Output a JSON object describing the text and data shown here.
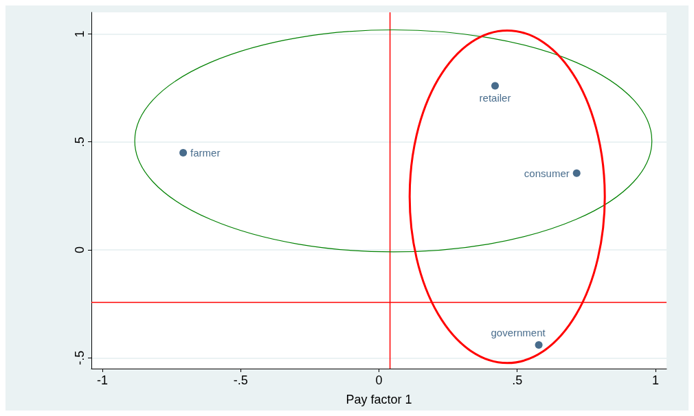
{
  "chart_data": {
    "type": "scatter",
    "xlabel": "Pay factor 1",
    "xlim": [
      -1.04,
      1.04
    ],
    "ylim": [
      -0.55,
      1.1
    ],
    "xticks": [
      -1,
      {
        "value": -0.5,
        "label": "-.5"
      },
      0,
      {
        "value": 0.5,
        "label": ".5"
      },
      1
    ],
    "yticks": [
      {
        "value": -0.5,
        "label": "-.5"
      },
      0,
      {
        "value": 0.5,
        "label": ".5"
      },
      1
    ],
    "grid": "y",
    "legend": false,
    "marker": "circle",
    "series": [
      {
        "name": "farmer",
        "color": "#1a476f",
        "x": [
          -0.708
        ],
        "values": [
          0.45
        ]
      },
      {
        "name": "retailer",
        "color": "#1a476f",
        "x": [
          0.42
        ],
        "values": [
          0.76
        ]
      },
      {
        "name": "consumer",
        "color": "#1a476f",
        "x": [
          0.715
        ],
        "values": [
          0.355
        ]
      },
      {
        "name": "government",
        "color": "#1a476f",
        "x": [
          0.578
        ],
        "values": [
          -0.44
        ]
      }
    ],
    "ref_lines": [
      {
        "axis": "x",
        "value": 0.04,
        "color": "#ff0000"
      },
      {
        "axis": "y",
        "value": -0.243,
        "color": "#ff0000"
      }
    ]
  }
}
